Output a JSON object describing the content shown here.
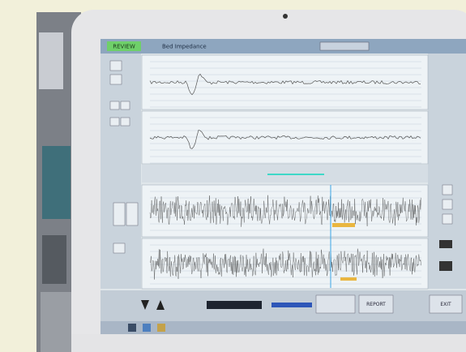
{
  "screen": {
    "mode": "REVIEW",
    "title": "Bed Impedance",
    "buttons": {
      "report": "REPORT",
      "exit": "EXIT"
    }
  }
}
